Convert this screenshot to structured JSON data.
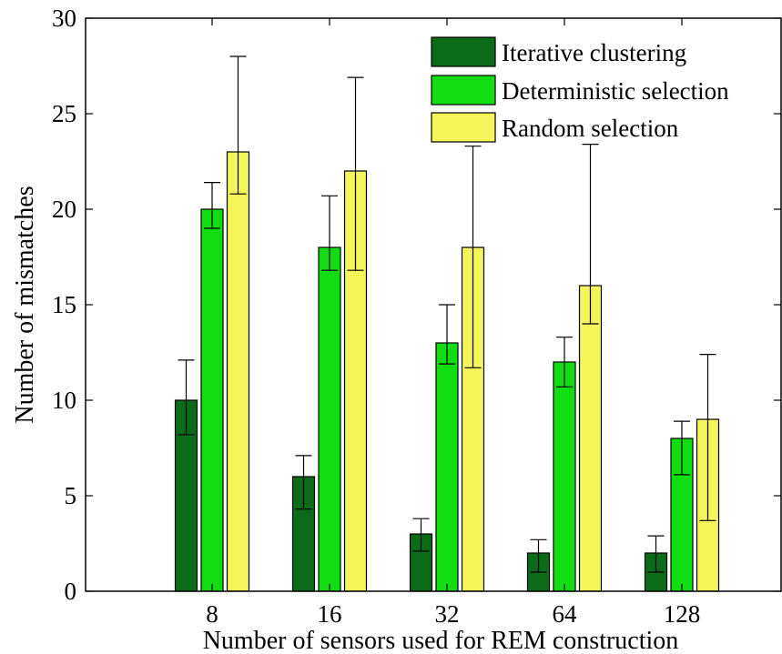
{
  "chart_data": {
    "type": "bar",
    "title": "",
    "xlabel": "Number of sensors used for REM construction",
    "ylabel": "Number of mismatches",
    "categories": [
      "8",
      "16",
      "32",
      "64",
      "128"
    ],
    "ylim": [
      0,
      30
    ],
    "yticks": [
      0,
      5,
      10,
      15,
      20,
      25,
      30
    ],
    "grid": false,
    "legend_position": "top-right",
    "series": [
      {
        "name": "Iterative clustering",
        "color": "#0b6b18",
        "values": [
          10,
          6,
          3,
          2,
          2
        ],
        "error_low": [
          8.2,
          4.3,
          2.1,
          1.0,
          1.0
        ],
        "error_high": [
          12.1,
          7.1,
          3.8,
          2.7,
          2.9
        ]
      },
      {
        "name": "Deterministic selection",
        "color": "#12dd12",
        "values": [
          20,
          18,
          13,
          12,
          8
        ],
        "error_low": [
          19.0,
          16.8,
          11.9,
          10.7,
          6.1
        ],
        "error_high": [
          21.4,
          20.7,
          15.0,
          13.3,
          8.9
        ]
      },
      {
        "name": "Random selection",
        "color": "#f3f55a",
        "values": [
          23,
          22,
          18,
          16,
          9
        ],
        "error_low": [
          20.8,
          16.8,
          11.7,
          14.0,
          3.7
        ],
        "error_high": [
          28.0,
          26.9,
          23.3,
          23.4,
          12.4
        ]
      }
    ]
  }
}
